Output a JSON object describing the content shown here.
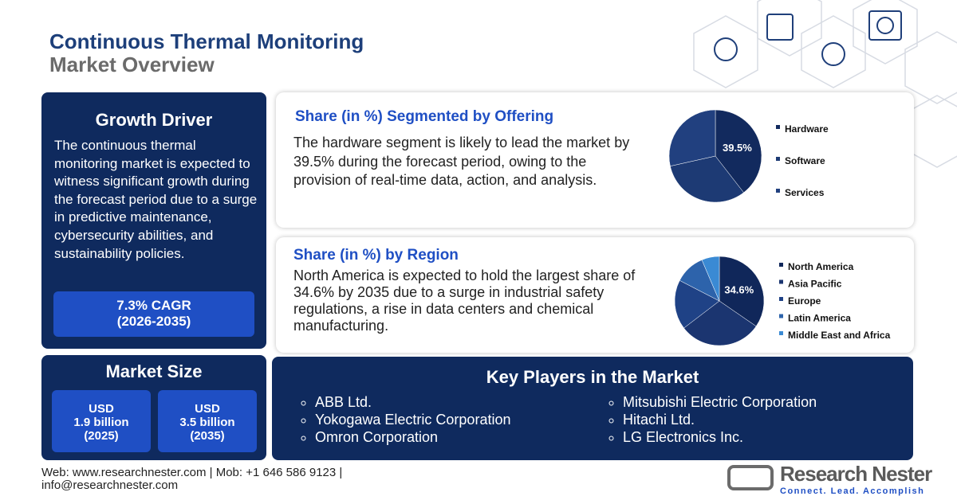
{
  "header": {
    "title": "Continuous Thermal Monitoring",
    "subtitle": "Market Overview"
  },
  "growth_driver": {
    "title": "Growth Driver",
    "text": "The continuous thermal monitoring market is expected to witness significant growth during the forecast period due to a surge in predictive maintenance, cybersecurity abilities, and sustainability policies.",
    "cagr": "7.3% CAGR",
    "period": "(2026-2035)"
  },
  "market_size": {
    "title": "Market Size",
    "items": [
      {
        "currency": "USD",
        "amount": "1.9 billion",
        "year": "(2025)"
      },
      {
        "currency": "USD",
        "amount": "3.5 billion",
        "year": "(2035)"
      }
    ]
  },
  "chart_data": [
    {
      "type": "pie",
      "title": "Share (in %) Segmented by Offering",
      "subtitle": "The hardware segment is likely to lead the market by 39.5% during the forecast period, owing to the provision of real-time data, action, and analysis.",
      "categories": [
        "Hardware",
        "Software",
        "Services"
      ],
      "values": [
        39.5,
        32,
        28.5
      ],
      "value_labels": [
        "39.5%",
        null,
        null
      ],
      "colors": [
        "#122a5e",
        "#1d3a74",
        "#21407f"
      ]
    },
    {
      "type": "pie",
      "title": "Share (in %) by Region",
      "subtitle": "North America is expected to hold the largest share of 34.6% by 2035 due to a surge in industrial safety regulations, a rise in data centers and chemical manufacturing.",
      "categories": [
        "North America",
        "Asia Pacific",
        "Europe",
        "Latin America",
        "Middle East and Africa"
      ],
      "values": [
        34.6,
        30,
        18,
        11,
        6.4
      ],
      "value_labels": [
        "34.6%",
        null,
        null,
        null,
        null
      ],
      "colors": [
        "#10275a",
        "#1b3570",
        "#1f4286",
        "#2d63ab",
        "#3a8ad4"
      ]
    }
  ],
  "key_players": {
    "title": "Key Players in the Market",
    "left": [
      "ABB Ltd.",
      "Yokogawa Electric Corporation",
      "Omron Corporation"
    ],
    "right": [
      "Mitsubishi Electric Corporation",
      "Hitachi Ltd.",
      "LG Electronics Inc."
    ]
  },
  "footer": {
    "line1": "Web: www.researchnester.com | Mob: +1 646 586 9123 |",
    "line2": "info@researchnester.com"
  },
  "logo": {
    "name": "Research Nester",
    "tagline": "Connect. Lead. Accomplish"
  }
}
